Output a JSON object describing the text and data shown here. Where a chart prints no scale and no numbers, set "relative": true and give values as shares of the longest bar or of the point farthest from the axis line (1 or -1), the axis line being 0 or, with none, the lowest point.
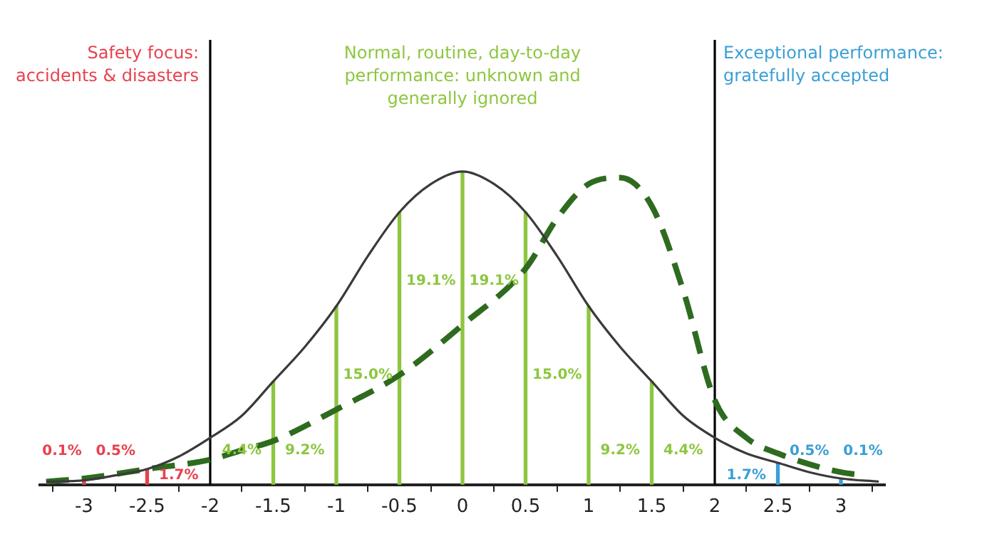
{
  "chart_data": {
    "type": "line",
    "relative": true,
    "xlim": [
      -3.35,
      3.35
    ],
    "xticks": [
      -3,
      -2.5,
      -2,
      -1.5,
      -1,
      -0.5,
      0,
      0.5,
      1,
      1.5,
      2,
      2.5,
      3
    ],
    "grid": false,
    "legend": false,
    "series": [
      {
        "color": "#3a3a3a",
        "line_style": "solid",
        "x": [
          -3.3,
          -3,
          -2.75,
          -2.5,
          -2.25,
          -2,
          -1.75,
          -1.5,
          -1.25,
          -1,
          -0.75,
          -0.5,
          -0.25,
          0,
          0.25,
          0.5,
          0.75,
          1,
          1.25,
          1.5,
          1.75,
          2,
          2.25,
          2.5,
          2.75,
          3,
          3.3
        ],
        "values": [
          0.01,
          0.014,
          0.03,
          0.05,
          0.09,
          0.15,
          0.22,
          0.33,
          0.44,
          0.57,
          0.73,
          0.87,
          0.96,
          1,
          0.96,
          0.87,
          0.73,
          0.57,
          0.44,
          0.33,
          0.22,
          0.15,
          0.1,
          0.07,
          0.04,
          0.02,
          0.01
        ]
      },
      {
        "color": "#2e6b1f",
        "line_style": "dashed",
        "x": [
          -3.3,
          -3,
          -2.5,
          -2,
          -1.75,
          -1.5,
          -1,
          -0.5,
          0,
          0.5,
          0.75,
          1,
          1.25,
          1.5,
          1.75,
          2,
          2.25,
          2.5,
          3,
          3.2
        ],
        "values": [
          0.01,
          0.02,
          0.05,
          0.08,
          0.11,
          0.14,
          0.24,
          0.35,
          0.51,
          0.69,
          0.85,
          0.96,
          0.98,
          0.89,
          0.62,
          0.27,
          0.15,
          0.1,
          0.04,
          0.03
        ]
      },
      {
        "type": "bar",
        "x": [
          -3,
          -2.5,
          -1.5,
          -1,
          -0.5,
          0,
          0.5,
          1,
          1.5,
          2.5,
          3
        ],
        "values": [
          0.014,
          0.05,
          0.33,
          0.57,
          0.87,
          1,
          0.87,
          0.57,
          0.33,
          0.07,
          0.02
        ],
        "colors": [
          "#e8414e",
          "#e8414e",
          "#8dc63f",
          "#8dc63f",
          "#8dc63f",
          "#8dc63f",
          "#8dc63f",
          "#8dc63f",
          "#8dc63f",
          "#3a9fd6",
          "#3a9fd6"
        ]
      }
    ],
    "ref_lines": [
      {
        "axis": "x",
        "value": -2,
        "color": "#000000"
      },
      {
        "axis": "x",
        "value": 2,
        "color": "#000000"
      }
    ],
    "annotations": [
      "Safety focus:\naccidents & disasters",
      "Normal, routine, day-to-day\nperformance: unknown and\ngenerally ignored",
      "Exceptional performance:\ngratefully accepted",
      "0.1%",
      "0.5%",
      "1.7%",
      "4.4%",
      "9.2%",
      "15.0%",
      "19.1%",
      "19.1%",
      "15.0%",
      "9.2%",
      "4.4%",
      "1.7%",
      "0.5%",
      "0.1%"
    ]
  }
}
